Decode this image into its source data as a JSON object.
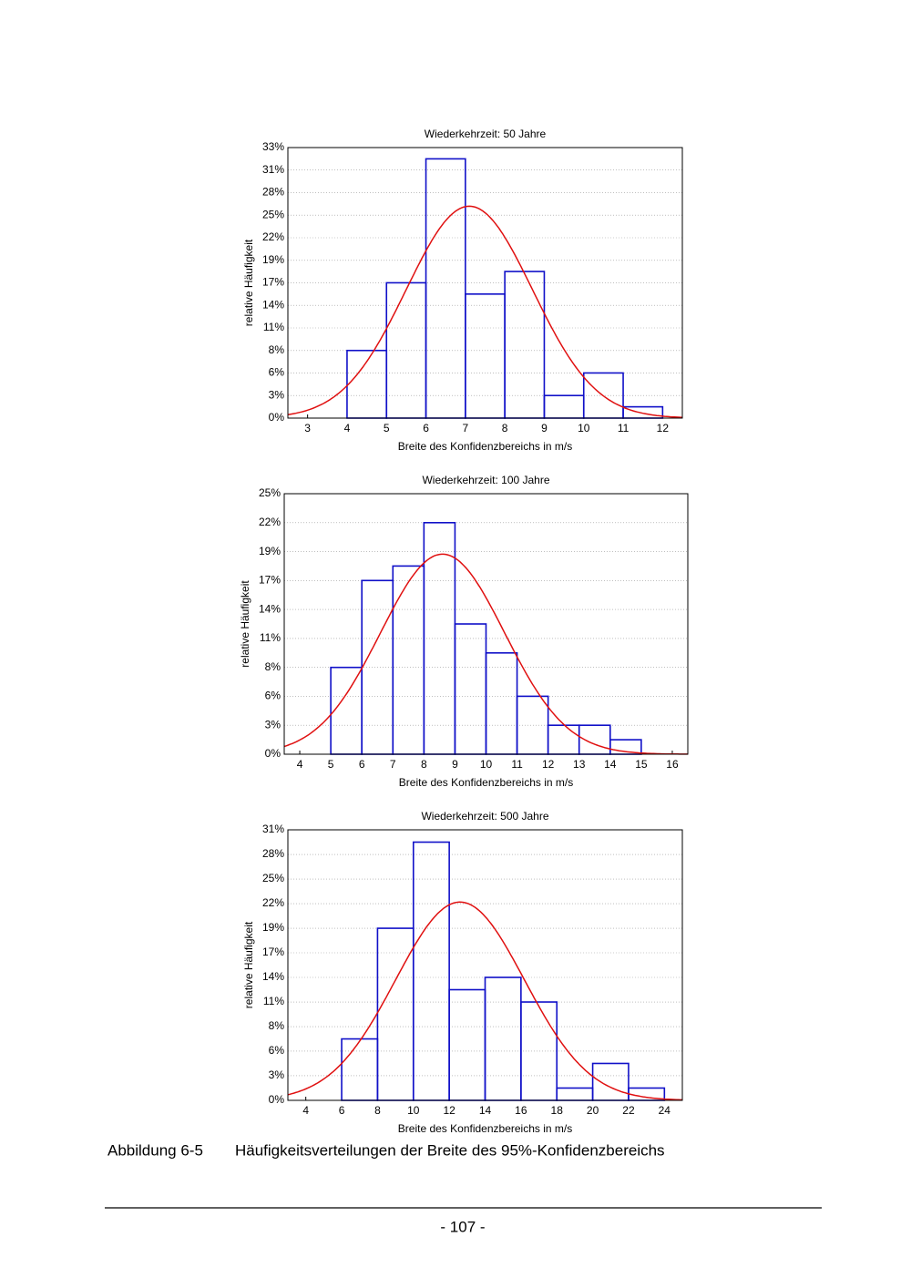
{
  "chart_data": [
    {
      "type": "histogram",
      "title": "Wiederkehrzeit: 50 Jahre",
      "x_label": "Breite des Konfidenzbereichs in m/s",
      "y_label": "relative Häufigkeit",
      "bins": [
        4,
        5,
        6,
        7,
        8,
        9,
        10,
        11,
        12
      ],
      "values": [
        8.33,
        16.67,
        31.94,
        15.28,
        18.06,
        2.78,
        5.56,
        1.39
      ],
      "color": "#1010c8",
      "fit": {
        "mean": 7.1,
        "sd": 1.6,
        "peak": 26.1,
        "color": "#e01010"
      },
      "xlim": [
        2.5,
        12.5
      ],
      "xticks": [
        3,
        4,
        5,
        6,
        7,
        8,
        9,
        10,
        11,
        12
      ],
      "ylim": [
        0,
        33.33
      ],
      "yticks": [
        {
          "value": 0,
          "label": "0%"
        },
        {
          "value": 2.78,
          "label": "3%"
        },
        {
          "value": 5.56,
          "label": "6%"
        },
        {
          "value": 8.33,
          "label": "8%"
        },
        {
          "value": 11.11,
          "label": "11%"
        },
        {
          "value": 13.89,
          "label": "14%"
        },
        {
          "value": 16.67,
          "label": "17%"
        },
        {
          "value": 19.44,
          "label": "19%"
        },
        {
          "value": 22.22,
          "label": "22%"
        },
        {
          "value": 25,
          "label": "25%"
        },
        {
          "value": 27.78,
          "label": "28%"
        },
        {
          "value": 30.56,
          "label": "31%"
        },
        {
          "value": 33.33,
          "label": "33%"
        }
      ],
      "grid": true
    },
    {
      "type": "histogram",
      "title": "Wiederkehrzeit: 100 Jahre",
      "x_label": "Breite des Konfidenzbereichs in m/s",
      "y_label": "relative Häufigkeit",
      "bins": [
        5,
        6,
        7,
        8,
        9,
        10,
        11,
        12,
        13,
        14,
        15
      ],
      "values": [
        8.33,
        16.67,
        18.06,
        22.22,
        12.5,
        9.72,
        5.56,
        2.78,
        2.78,
        1.39
      ],
      "color": "#1010c8",
      "fit": {
        "mean": 8.6,
        "sd": 2.0,
        "peak": 19.2,
        "color": "#e01010"
      },
      "xlim": [
        3.5,
        16.5
      ],
      "xticks": [
        4,
        5,
        6,
        7,
        8,
        9,
        10,
        11,
        12,
        13,
        14,
        15,
        16
      ],
      "ylim": [
        0,
        25
      ],
      "yticks": [
        {
          "value": 0,
          "label": "0%"
        },
        {
          "value": 2.78,
          "label": "3%"
        },
        {
          "value": 5.56,
          "label": "6%"
        },
        {
          "value": 8.33,
          "label": "8%"
        },
        {
          "value": 11.11,
          "label": "11%"
        },
        {
          "value": 13.89,
          "label": "14%"
        },
        {
          "value": 16.67,
          "label": "17%"
        },
        {
          "value": 19.44,
          "label": "19%"
        },
        {
          "value": 22.22,
          "label": "22%"
        },
        {
          "value": 25,
          "label": "25%"
        }
      ],
      "grid": true
    },
    {
      "type": "histogram",
      "title": "Wiederkehrzeit: 500 Jahre",
      "x_label": "Breite des Konfidenzbereichs in m/s",
      "y_label": "relative Häufigkeit",
      "bins": [
        6,
        8,
        10,
        12,
        14,
        16,
        18,
        20,
        22,
        24
      ],
      "values": [
        6.94,
        19.44,
        29.17,
        12.5,
        13.89,
        11.11,
        1.39,
        4.17,
        1.39
      ],
      "color": "#1010c8",
      "fit": {
        "mean": 12.6,
        "sd": 3.6,
        "peak": 22.4,
        "color": "#e01010"
      },
      "xlim": [
        3,
        25
      ],
      "xticks": [
        4,
        6,
        8,
        10,
        12,
        14,
        16,
        18,
        20,
        22,
        24
      ],
      "ylim": [
        0,
        30.56
      ],
      "yticks": [
        {
          "value": 0,
          "label": "0%"
        },
        {
          "value": 2.78,
          "label": "3%"
        },
        {
          "value": 5.56,
          "label": "6%"
        },
        {
          "value": 8.33,
          "label": "8%"
        },
        {
          "value": 11.11,
          "label": "11%"
        },
        {
          "value": 13.89,
          "label": "14%"
        },
        {
          "value": 16.67,
          "label": "17%"
        },
        {
          "value": 19.44,
          "label": "19%"
        },
        {
          "value": 22.22,
          "label": "22%"
        },
        {
          "value": 25,
          "label": "25%"
        },
        {
          "value": 27.78,
          "label": "28%"
        },
        {
          "value": 30.56,
          "label": "31%"
        }
      ],
      "grid": true
    }
  ],
  "caption": {
    "number": "Abbildung 6-5",
    "text": "Häufigkeitsverteilungen der Breite des 95%-Konfidenzbereichs"
  },
  "page_number": "- 107 -"
}
